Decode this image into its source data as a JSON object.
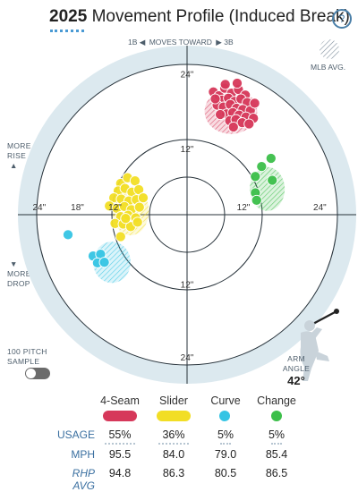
{
  "header": {
    "year": "2025",
    "title": "Movement Profile (Induced Break)",
    "help_label": "?"
  },
  "direction": {
    "left": "1B",
    "label": "MOVES TOWARD",
    "right": "3B"
  },
  "legend": {
    "mlb_avg": "MLB AVG."
  },
  "side_labels": {
    "rise": [
      "MORE",
      "RISE"
    ],
    "drop": [
      "MORE",
      "DROP"
    ]
  },
  "ring_labels": {
    "top_outer": "24\"",
    "top_inner": "12\"",
    "bottom_inner": "12\"",
    "bottom_outer": "24\"",
    "left_outer": "24\"",
    "left_mid": "18\"",
    "left_inner": "12\"",
    "right_inner": "12\"",
    "right_outer": "24\""
  },
  "sample_toggle": {
    "line1": "100 PITCH",
    "line2": "SAMPLE",
    "on": false
  },
  "arm_angle": {
    "line1": "ARM",
    "line2": "ANGLE",
    "value": "42°"
  },
  "colors": {
    "fourseam": "#d6385a",
    "slider": "#f2de25",
    "curve": "#35c4e4",
    "change": "#3cbf4a",
    "accent": "#4a9ad4"
  },
  "pitches": [
    {
      "key": "fourseam",
      "name": "4-Seam",
      "usage": "55%",
      "mph": "95.5",
      "rhp_avg": "94.8"
    },
    {
      "key": "slider",
      "name": "Slider",
      "usage": "36%",
      "mph": "84.0",
      "rhp_avg": "86.3"
    },
    {
      "key": "curve",
      "name": "Curve",
      "usage": "5%",
      "mph": "79.0",
      "rhp_avg": "80.5"
    },
    {
      "key": "change",
      "name": "Change",
      "usage": "5%",
      "mph": "85.4",
      "rhp_avg": "86.5"
    }
  ],
  "row_labels": {
    "usage": "USAGE",
    "mph": "MPH",
    "rhp_avg": "RHP AVG"
  },
  "chart_data": {
    "type": "scatter",
    "xlabel": "",
    "ylabel": "",
    "xlim": [
      -30,
      30
    ],
    "ylim": [
      -30,
      30
    ],
    "rings": [
      6,
      12,
      18,
      24
    ],
    "series": [
      {
        "name": "4-Seam",
        "color": "#d6385a",
        "avg": {
          "x": 7.0,
          "y": 16.5,
          "rx": 4.2,
          "ry": 3.6
        },
        "points": [
          [
            4.2,
            19.6
          ],
          [
            5.1,
            19.0
          ],
          [
            6.0,
            20.2
          ],
          [
            7.1,
            19.4
          ],
          [
            8.2,
            20.0
          ],
          [
            9.3,
            19.1
          ],
          [
            5.6,
            18.3
          ],
          [
            6.6,
            18.6
          ],
          [
            7.6,
            18.1
          ],
          [
            8.6,
            18.5
          ],
          [
            9.6,
            17.9
          ],
          [
            4.8,
            17.5
          ],
          [
            5.8,
            17.2
          ],
          [
            6.9,
            17.6
          ],
          [
            7.9,
            17.0
          ],
          [
            8.9,
            16.8
          ],
          [
            10.1,
            16.6
          ],
          [
            6.3,
            16.1
          ],
          [
            7.3,
            16.3
          ],
          [
            8.3,
            15.9
          ],
          [
            9.4,
            15.6
          ],
          [
            10.6,
            15.4
          ],
          [
            5.3,
            16.0
          ],
          [
            6.8,
            15.0
          ],
          [
            7.8,
            15.2
          ],
          [
            8.8,
            14.7
          ],
          [
            9.9,
            14.5
          ],
          [
            7.4,
            14.0
          ],
          [
            6.1,
            20.8
          ],
          [
            8.0,
            21.0
          ],
          [
            10.8,
            17.8
          ],
          [
            4.5,
            18.5
          ]
        ]
      },
      {
        "name": "Slider",
        "color": "#f2de25",
        "avg": {
          "x": -9.0,
          "y": 0.6,
          "rx": 2.9,
          "ry": 3.9
        },
        "points": [
          [
            -10.6,
            5.0
          ],
          [
            -9.5,
            5.9
          ],
          [
            -8.3,
            5.4
          ],
          [
            -11.0,
            3.8
          ],
          [
            -9.9,
            4.2
          ],
          [
            -8.8,
            3.6
          ],
          [
            -7.7,
            4.0
          ],
          [
            -11.7,
            2.7
          ],
          [
            -10.5,
            2.5
          ],
          [
            -9.3,
            2.2
          ],
          [
            -8.1,
            2.4
          ],
          [
            -7.0,
            2.7
          ],
          [
            -12.4,
            1.4
          ],
          [
            -11.2,
            1.0
          ],
          [
            -10.0,
            1.3
          ],
          [
            -8.9,
            0.8
          ],
          [
            -7.6,
            1.2
          ],
          [
            -10.6,
            -0.3
          ],
          [
            -9.4,
            -0.1
          ],
          [
            -8.2,
            -0.5
          ],
          [
            -11.5,
            -1.4
          ],
          [
            -10.2,
            -1.5
          ],
          [
            -9.0,
            -1.9
          ],
          [
            -7.9,
            -1.2
          ],
          [
            -10.6,
            -3.5
          ],
          [
            -9.8,
            -0.6
          ]
        ]
      },
      {
        "name": "Curve",
        "color": "#35c4e4",
        "avg": {
          "x": -12.0,
          "y": -7.6,
          "rx": 3.0,
          "ry": 3.3
        },
        "points": [
          [
            -19.0,
            -3.2
          ],
          [
            -15.0,
            -6.6
          ],
          [
            -13.8,
            -6.3
          ],
          [
            -14.3,
            -7.7
          ],
          [
            -13.2,
            -7.6
          ]
        ]
      },
      {
        "name": "Change",
        "color": "#3cbf4a",
        "avg": {
          "x": 12.8,
          "y": 4.1,
          "rx": 2.8,
          "ry": 3.5
        },
        "points": [
          [
            11.9,
            7.7
          ],
          [
            13.4,
            9.0
          ],
          [
            10.9,
            6.1
          ],
          [
            13.6,
            5.5
          ],
          [
            10.9,
            3.5
          ],
          [
            11.1,
            2.3
          ]
        ]
      }
    ]
  }
}
